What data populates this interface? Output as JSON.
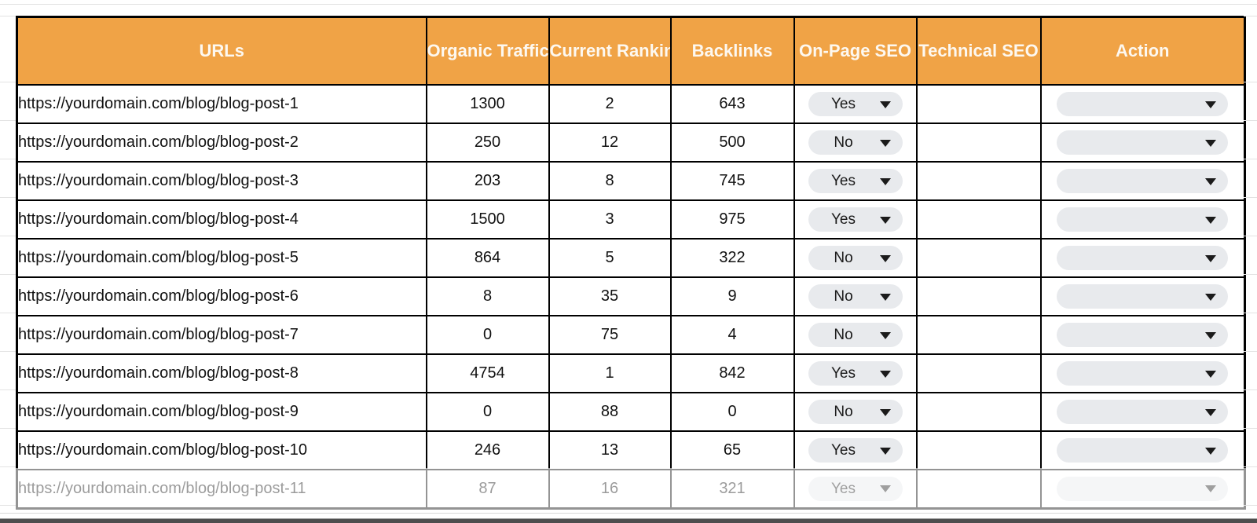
{
  "colors": {
    "header_bg": "#F0A346",
    "header_text": "#FDF8F0",
    "chip_bg": "#E8EAED",
    "border": "#000000"
  },
  "table": {
    "columns": [
      {
        "label": "URLs"
      },
      {
        "label": "Organic Traffic"
      },
      {
        "label": "Current Ranking"
      },
      {
        "label": "Backlinks"
      },
      {
        "label": "On-Page SEO"
      },
      {
        "label": "Technical SEO"
      },
      {
        "label": "Action"
      }
    ],
    "rows": [
      {
        "url": "https://yourdomain.com/blog/blog-post-1",
        "organic_traffic": "1300",
        "current_ranking": "2",
        "backlinks": "643",
        "on_page_seo": "Yes",
        "technical_seo": "",
        "action": ""
      },
      {
        "url": "https://yourdomain.com/blog/blog-post-2",
        "organic_traffic": "250",
        "current_ranking": "12",
        "backlinks": "500",
        "on_page_seo": "No",
        "technical_seo": "",
        "action": ""
      },
      {
        "url": "https://yourdomain.com/blog/blog-post-3",
        "organic_traffic": "203",
        "current_ranking": "8",
        "backlinks": "745",
        "on_page_seo": "Yes",
        "technical_seo": "",
        "action": ""
      },
      {
        "url": "https://yourdomain.com/blog/blog-post-4",
        "organic_traffic": "1500",
        "current_ranking": "3",
        "backlinks": "975",
        "on_page_seo": "Yes",
        "technical_seo": "",
        "action": ""
      },
      {
        "url": "https://yourdomain.com/blog/blog-post-5",
        "organic_traffic": "864",
        "current_ranking": "5",
        "backlinks": "322",
        "on_page_seo": "No",
        "technical_seo": "",
        "action": ""
      },
      {
        "url": "https://yourdomain.com/blog/blog-post-6",
        "organic_traffic": "8",
        "current_ranking": "35",
        "backlinks": "9",
        "on_page_seo": "No",
        "technical_seo": "",
        "action": ""
      },
      {
        "url": "https://yourdomain.com/blog/blog-post-7",
        "organic_traffic": "0",
        "current_ranking": "75",
        "backlinks": "4",
        "on_page_seo": "No",
        "technical_seo": "",
        "action": ""
      },
      {
        "url": "https://yourdomain.com/blog/blog-post-8",
        "organic_traffic": "4754",
        "current_ranking": "1",
        "backlinks": "842",
        "on_page_seo": "Yes",
        "technical_seo": "",
        "action": ""
      },
      {
        "url": "https://yourdomain.com/blog/blog-post-9",
        "organic_traffic": "0",
        "current_ranking": "88",
        "backlinks": "0",
        "on_page_seo": "No",
        "technical_seo": "",
        "action": ""
      },
      {
        "url": "https://yourdomain.com/blog/blog-post-10",
        "organic_traffic": "246",
        "current_ranking": "13",
        "backlinks": "65",
        "on_page_seo": "Yes",
        "technical_seo": "",
        "action": ""
      },
      {
        "url": "https://yourdomain.com/blog/blog-post-11",
        "organic_traffic": "87",
        "current_ranking": "16",
        "backlinks": "321",
        "on_page_seo": "Yes",
        "technical_seo": "",
        "action": ""
      }
    ]
  }
}
